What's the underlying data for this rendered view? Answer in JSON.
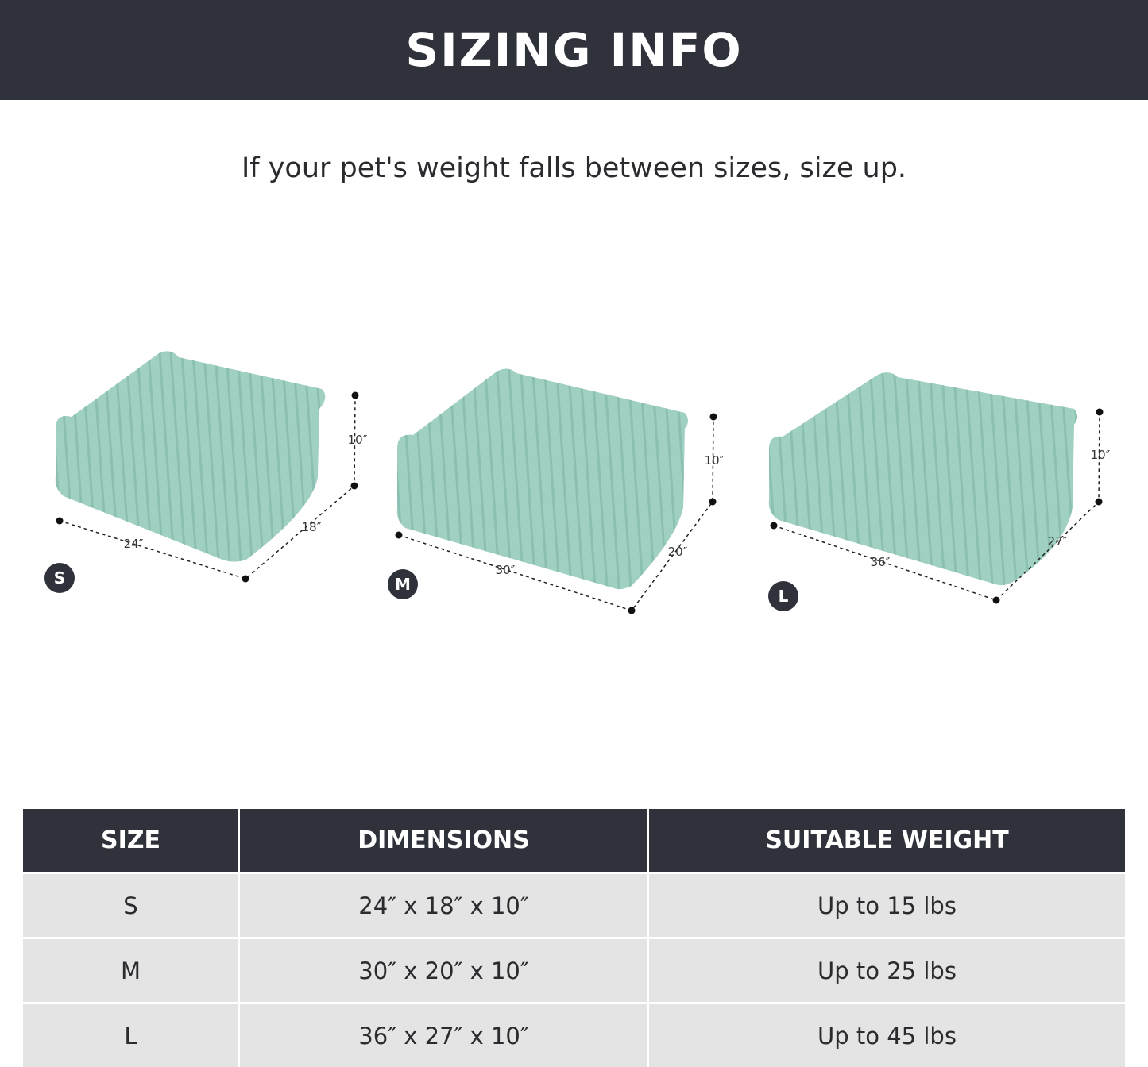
{
  "header": {
    "title": "SIZING INFO"
  },
  "subtitle": "If your pet's weight falls between sizes, size up.",
  "colors": {
    "header_bg": "#30323b",
    "row_bg": "#e4e4e4",
    "bed": "#9fd0c2"
  },
  "beds": [
    {
      "size": "S",
      "width": "24″",
      "depth": "18″",
      "height": "10″"
    },
    {
      "size": "M",
      "width": "30″",
      "depth": "20″",
      "height": "10″"
    },
    {
      "size": "L",
      "width": "36″",
      "depth": "27″",
      "height": "10″"
    }
  ],
  "table": {
    "headers": [
      "SIZE",
      "DIMENSIONS",
      "SUITABLE WEIGHT"
    ],
    "rows": [
      [
        "S",
        "24″ x 18″ x 10″",
        "Up to 15 lbs"
      ],
      [
        "M",
        "30″ x 20″ x 10″",
        "Up to 25 lbs"
      ],
      [
        "L",
        "36″ x 27″ x 10″",
        "Up to 45 lbs"
      ]
    ]
  }
}
